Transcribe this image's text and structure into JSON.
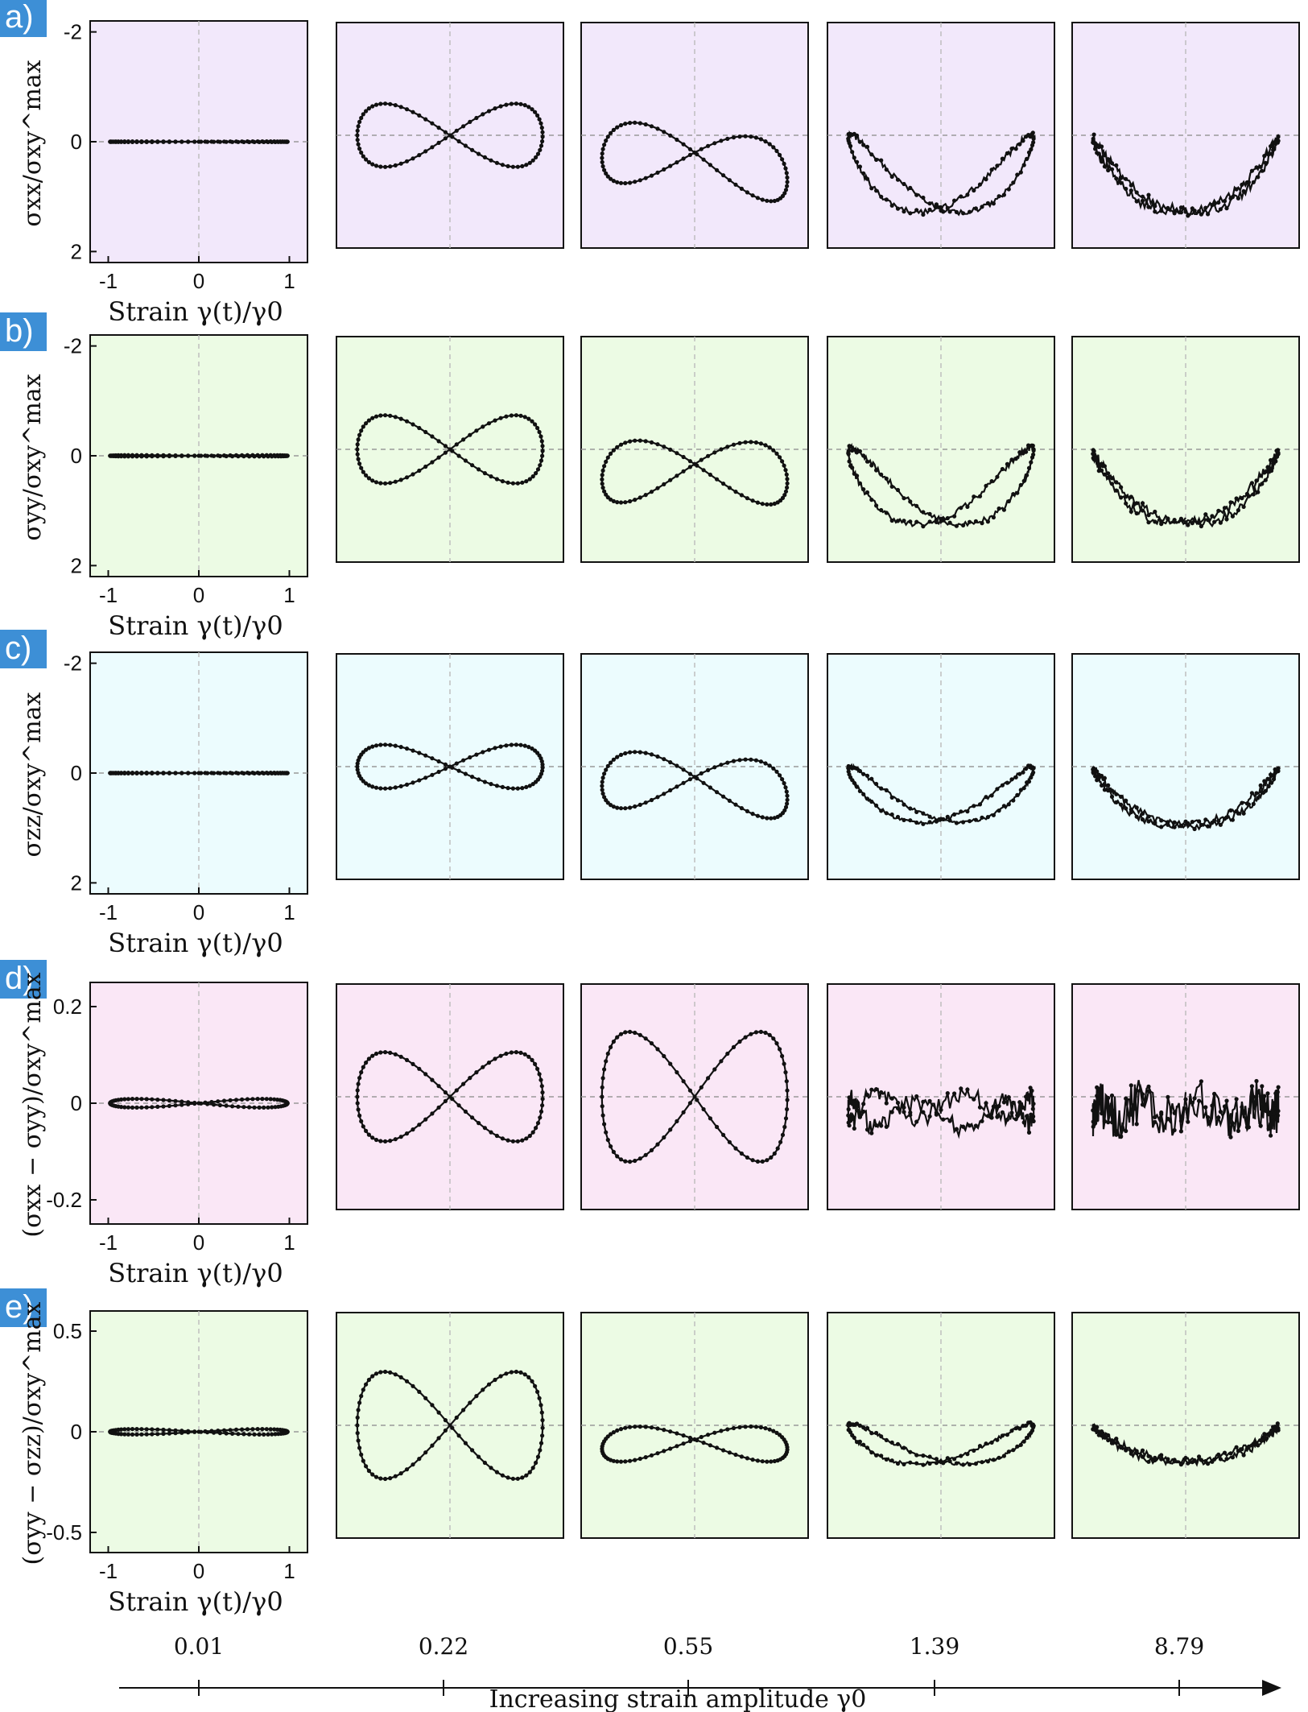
{
  "colors": {
    "badge": "#3d8fd6",
    "ink": "#111111",
    "rows": [
      "#f2e8fb",
      "#ecfbe4",
      "#ecfcfe",
      "#fae7f6",
      "#ecfbe4"
    ]
  },
  "figure": {
    "x_axis_label": "Strain γ(t)/γ0",
    "bottom_axis_label": "Increasing strain amplitude γ0",
    "amplitudes": [
      "0.01",
      "0.22",
      "0.55",
      "1.39",
      "8.79"
    ],
    "x_ticks": [
      "-1",
      "0",
      "1"
    ]
  },
  "chart_data": [
    {
      "row": "a)",
      "type": "line",
      "ylabel": "σxx/σxy^max",
      "y_ticks": [
        "-2",
        "0",
        "2"
      ],
      "xlim": [
        -1.2,
        1.2
      ],
      "ylim": [
        -2.2,
        2.2
      ],
      "series": [
        {
          "gamma0": 0.01,
          "shape": "flat",
          "p": {
            "a": 0.01,
            "c": 0
          }
        },
        {
          "gamma0": 0.22,
          "shape": "bowtie",
          "p": {
            "a": 0.65,
            "c": 0
          }
        },
        {
          "gamma0": 0.55,
          "shape": "tilted",
          "p": {
            "t": -0.45,
            "a": 0.65,
            "c": -0.5
          }
        },
        {
          "gamma0": 1.39,
          "shape": "vee",
          "p": {
            "depth": 1.5,
            "spread": 0.18
          }
        },
        {
          "gamma0": 8.79,
          "shape": "bowl",
          "p": {
            "depth": 1.55,
            "noise": 0.1
          }
        }
      ]
    },
    {
      "row": "b)",
      "type": "line",
      "ylabel": "σyy/σxy^max",
      "y_ticks": [
        "-2",
        "0",
        "2"
      ],
      "xlim": [
        -1.2,
        1.2
      ],
      "ylim": [
        -2.2,
        2.2
      ],
      "series": [
        {
          "gamma0": 0.01,
          "shape": "flat",
          "p": {
            "a": 0.02,
            "c": 0
          }
        },
        {
          "gamma0": 0.22,
          "shape": "bowtie",
          "p": {
            "a": 0.7,
            "c": 0
          }
        },
        {
          "gamma0": 0.55,
          "shape": "tilted",
          "p": {
            "t": -0.05,
            "a": 0.65,
            "c": -0.45
          }
        },
        {
          "gamma0": 1.39,
          "shape": "vee",
          "p": {
            "depth": 1.45,
            "spread": 0.2
          }
        },
        {
          "gamma0": 8.79,
          "shape": "bowl",
          "p": {
            "depth": 1.5,
            "noise": 0.09
          }
        }
      ]
    },
    {
      "row": "c)",
      "type": "line",
      "ylabel": "σzz/σxy^max",
      "y_ticks": [
        "-2",
        "0",
        "2"
      ],
      "xlim": [
        -1.2,
        1.2
      ],
      "ylim": [
        -2.2,
        2.2
      ],
      "series": [
        {
          "gamma0": 0.01,
          "shape": "flat",
          "p": {
            "a": 0.01,
            "c": 0
          }
        },
        {
          "gamma0": 0.22,
          "shape": "bowtie",
          "p": {
            "a": 0.45,
            "c": 0
          }
        },
        {
          "gamma0": 0.55,
          "shape": "tilted",
          "p": {
            "t": -0.25,
            "a": 0.6,
            "c": -0.35
          }
        },
        {
          "gamma0": 1.39,
          "shape": "vee",
          "p": {
            "depth": 1.1,
            "spread": 0.12
          }
        },
        {
          "gamma0": 8.79,
          "shape": "bowl",
          "p": {
            "depth": 1.2,
            "noise": 0.07
          }
        }
      ]
    },
    {
      "row": "d)",
      "type": "line",
      "ylabel": "(σxx − σyy)/σxy^max",
      "y_ticks": [
        "0.2",
        "0",
        "-0.2"
      ],
      "y_tick_values": [
        0.2,
        0,
        -0.2
      ],
      "xlim": [
        -1.2,
        1.2
      ],
      "ylim": [
        -0.25,
        0.25
      ],
      "series": [
        {
          "gamma0": 0.01,
          "shape": "eight",
          "p": {
            "a": 0.01,
            "c": 0
          }
        },
        {
          "gamma0": 0.22,
          "shape": "eight",
          "p": {
            "a": 0.11,
            "c": 0
          }
        },
        {
          "gamma0": 0.55,
          "shape": "eight",
          "p": {
            "a": 0.16,
            "c": 0
          }
        },
        {
          "gamma0": 1.39,
          "shape": "wave",
          "p": {
            "c": -0.03,
            "amp": 0.035
          }
        },
        {
          "gamma0": 8.79,
          "shape": "noisy",
          "p": {
            "c": -0.03,
            "amp": 0.045
          }
        }
      ]
    },
    {
      "row": "e)",
      "type": "line",
      "ylabel": "(σyy − σzz)/σxy^max",
      "y_ticks": [
        "0.5",
        "0",
        "-0.5"
      ],
      "y_tick_values": [
        0.5,
        0,
        -0.5
      ],
      "xlim": [
        -1.2,
        1.2
      ],
      "ylim": [
        -0.6,
        0.6
      ],
      "series": [
        {
          "gamma0": 0.01,
          "shape": "eight",
          "p": {
            "a": 0.015,
            "c": 0
          }
        },
        {
          "gamma0": 0.22,
          "shape": "bowtie",
          "p": {
            "a": 0.3,
            "c": 0
          }
        },
        {
          "gamma0": 0.55,
          "shape": "tilted",
          "p": {
            "t": 0,
            "a": 0.1,
            "c": -0.1
          }
        },
        {
          "gamma0": 1.39,
          "shape": "vee",
          "p": {
            "depth": 0.2,
            "spread": 0.03
          }
        },
        {
          "gamma0": 8.79,
          "shape": "bowl",
          "p": {
            "depth": 0.2,
            "noise": 0.02
          }
        }
      ]
    }
  ]
}
